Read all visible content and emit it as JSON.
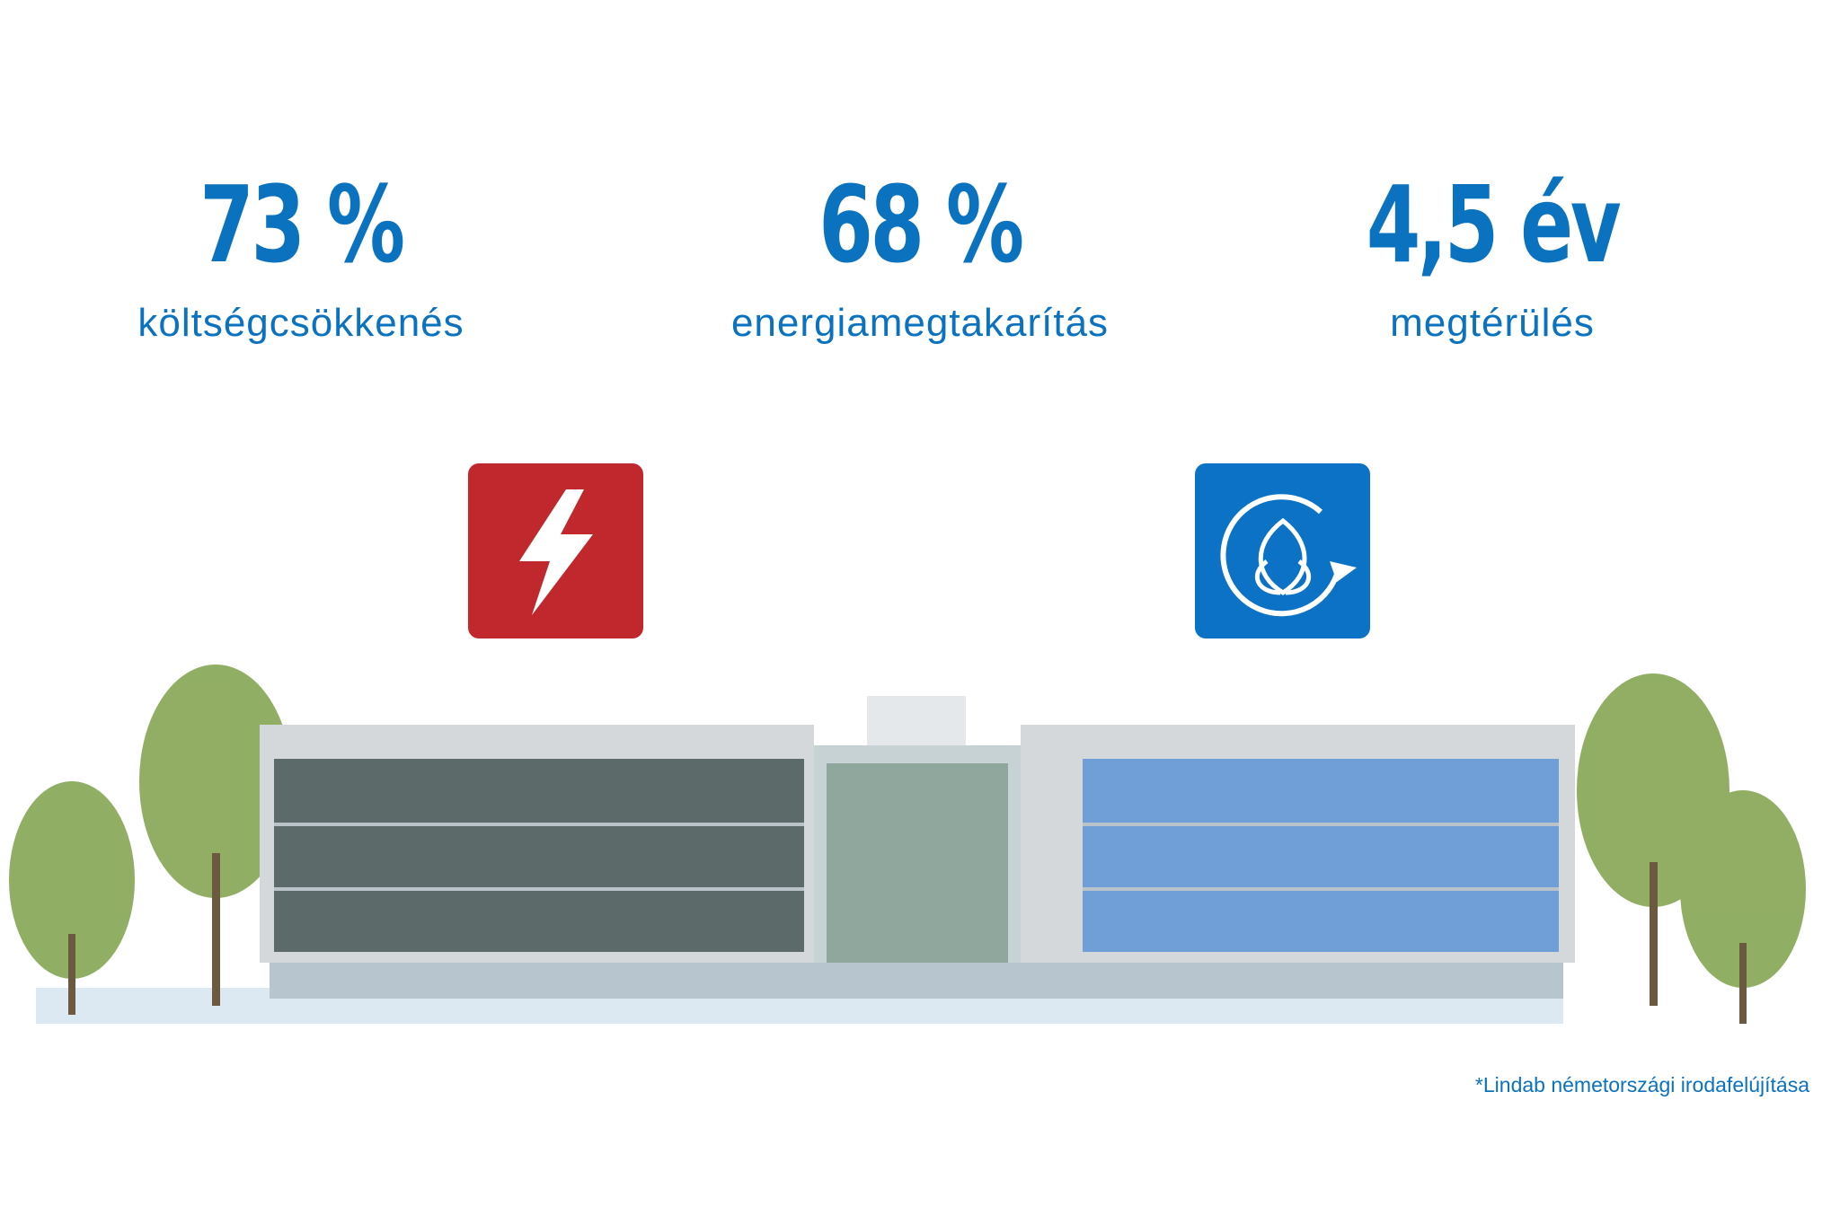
{
  "stats": [
    {
      "value": "73 %",
      "label": "költségcsökkenés"
    },
    {
      "value": "68 %",
      "label": "energiamegtakarítás"
    },
    {
      "value": "4,5 év",
      "label": "megtérülés"
    }
  ],
  "footnote": "*Lindab németországi irodafelújítása"
}
